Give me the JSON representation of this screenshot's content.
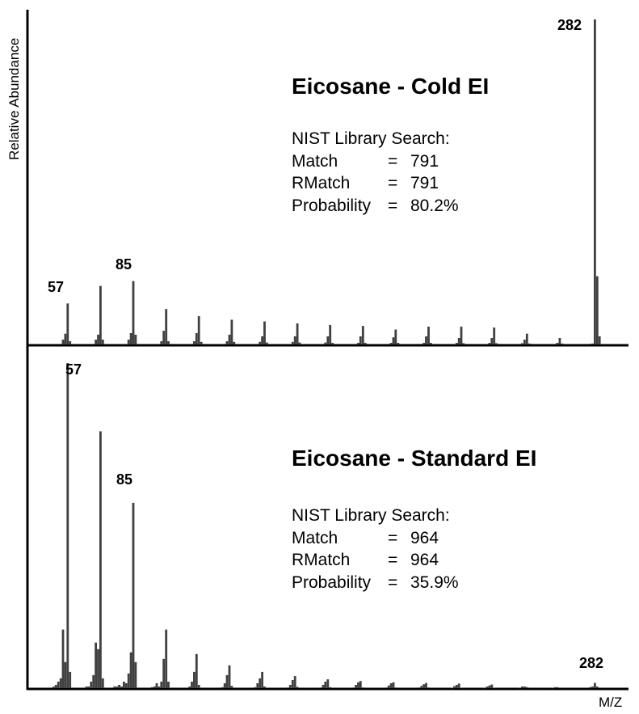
{
  "chart_data": [
    {
      "type": "bar",
      "title": "Eicosane - Cold EI",
      "ylabel": "Relative Abundance",
      "xlabel": "",
      "xlim": [
        40,
        300
      ],
      "ylim": [
        0,
        100
      ],
      "color": "#404040",
      "peak_labels": [
        "57",
        "85",
        "282"
      ],
      "info": [
        {
          "key": "NIST Library Search:",
          "eq": "",
          "value": ""
        },
        {
          "key": "Match",
          "eq": "=",
          "value": "791"
        },
        {
          "key": "RMatch",
          "eq": "=",
          "value": "791"
        },
        {
          "key": "Probability",
          "eq": "=",
          "value": "80.2%"
        }
      ],
      "x": [
        55,
        56,
        57,
        58,
        69,
        70,
        71,
        72,
        83,
        84,
        85,
        86,
        97,
        98,
        99,
        100,
        111,
        112,
        113,
        114,
        125,
        126,
        127,
        128,
        139,
        140,
        141,
        142,
        153,
        154,
        155,
        156,
        167,
        168,
        169,
        170,
        181,
        182,
        183,
        184,
        195,
        196,
        197,
        198,
        209,
        210,
        211,
        212,
        223,
        224,
        225,
        226,
        237,
        238,
        239,
        240,
        251,
        252,
        253,
        254,
        266,
        267,
        268,
        280,
        281,
        282,
        283,
        284
      ],
      "values": [
        1.5,
        3.3,
        12.6,
        1,
        1.5,
        3,
        18,
        1.5,
        1.5,
        3.5,
        19.5,
        3,
        1,
        4.2,
        10.9,
        1,
        1,
        3.5,
        8.7,
        0.8,
        1,
        3,
        7.6,
        0.8,
        0.8,
        2.5,
        7.1,
        0.6,
        0.8,
        2.5,
        6.5,
        0.6,
        0.6,
        2.5,
        6,
        0.5,
        0.5,
        2.5,
        5.7,
        0.5,
        0.5,
        2.2,
        4.6,
        0.5,
        0.5,
        2.5,
        5.5,
        0.5,
        0.5,
        2,
        5.5,
        0.4,
        0.5,
        2,
        5.2,
        0.4,
        0.4,
        1.5,
        3.3,
        0.3,
        0.5,
        2,
        0.3,
        0.2,
        0.3,
        100,
        21,
        2.5
      ]
    },
    {
      "type": "bar",
      "title": "Eicosane - Standard EI",
      "ylabel": "",
      "xlabel": "M/Z",
      "xlim": [
        40,
        300
      ],
      "ylim": [
        0,
        100
      ],
      "color": "#404040",
      "peak_labels": [
        "57",
        "85",
        "282"
      ],
      "info": [
        {
          "key": "NIST Library Search:",
          "eq": "",
          "value": ""
        },
        {
          "key": "Match",
          "eq": "=",
          "value": "964"
        },
        {
          "key": "RMatch",
          "eq": "=",
          "value": "964"
        },
        {
          "key": "Probability",
          "eq": "=",
          "value": "35.9%"
        }
      ],
      "x": [
        51,
        52,
        53,
        54,
        55,
        56,
        57,
        58,
        65,
        66,
        67,
        68,
        69,
        70,
        71,
        72,
        77,
        78,
        79,
        80,
        81,
        82,
        83,
        84,
        85,
        86,
        93,
        94,
        95,
        96,
        97,
        98,
        99,
        100,
        109,
        110,
        111,
        112,
        113,
        123,
        124,
        125,
        126,
        127,
        137,
        138,
        139,
        140,
        141,
        151,
        152,
        153,
        154,
        155,
        165,
        166,
        167,
        168,
        169,
        179,
        180,
        181,
        182,
        183,
        193,
        194,
        195,
        196,
        197,
        207,
        208,
        209,
        210,
        211,
        221,
        222,
        223,
        224,
        225,
        235,
        236,
        237,
        238,
        239,
        250,
        251,
        252,
        253,
        264,
        265,
        266,
        280,
        281,
        282,
        283
      ],
      "values": [
        0.5,
        1,
        2,
        3,
        18,
        8,
        100,
        5,
        0.5,
        0.5,
        2,
        4,
        14,
        12,
        79,
        3,
        0.5,
        0.5,
        1,
        0.5,
        2,
        1.5,
        4.5,
        11,
        57,
        8,
        0.3,
        0.5,
        1.5,
        0.5,
        2,
        9,
        18,
        2,
        0.5,
        2,
        5,
        10.5,
        1,
        0.3,
        1.5,
        4,
        7,
        0.7,
        0.3,
        1.5,
        3,
        5,
        0.5,
        0.2,
        1,
        2.5,
        3.7,
        0.4,
        0.2,
        1,
        2,
        2.7,
        0.3,
        0.2,
        1,
        1.8,
        2.2,
        0.2,
        0.2,
        0.8,
        1.5,
        1.8,
        0.2,
        0.2,
        0.7,
        1.2,
        1.6,
        0.2,
        0.1,
        0.6,
        1,
        1.4,
        0.1,
        0.1,
        0.5,
        0.8,
        1.1,
        0.1,
        0.1,
        0.5,
        0.5,
        0.3,
        0.1,
        0.3,
        0.3,
        0.3,
        0.5,
        1.6,
        0.5
      ]
    }
  ]
}
